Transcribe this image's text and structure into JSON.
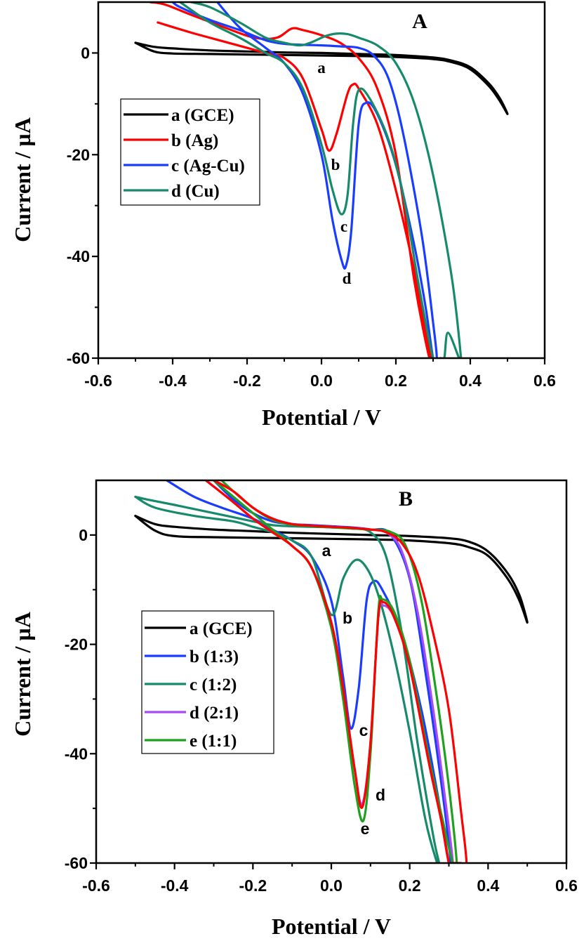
{
  "chart_data": [
    {
      "type": "line",
      "panel": "A",
      "title": "A",
      "xlabel": "Potential / V",
      "ylabel": "Current / µA",
      "xlim": [
        -0.6,
        0.6
      ],
      "ylim": [
        -60,
        10
      ],
      "xticks": [
        -0.6,
        -0.4,
        -0.2,
        0.0,
        0.2,
        0.4,
        0.6
      ],
      "xtick_labels": [
        "-0.6",
        "-0.4",
        "-0.2",
        "0.0",
        "0.2",
        "0.4",
        "0.6"
      ],
      "yticks": [
        0,
        -20,
        -40,
        -60
      ],
      "ytick_labels": [
        "0",
        "-20",
        "-40",
        "-60"
      ],
      "grid": false,
      "legend_position": "center-left",
      "series": [
        {
          "name": "a (GCE)",
          "color": "#000000",
          "peak_label": "a",
          "x": [
            -0.5,
            -0.45,
            -0.4,
            -0.3,
            -0.2,
            -0.1,
            0.0,
            0.1,
            0.2,
            0.3,
            0.35,
            0.4,
            0.45,
            0.48,
            0.5,
            0.48,
            0.45,
            0.4,
            0.35,
            0.3,
            0.2,
            0.1,
            0.0,
            -0.1,
            -0.2,
            -0.3,
            -0.4,
            -0.45,
            -0.5
          ],
          "y": [
            2,
            1.2,
            0.9,
            0.5,
            0.3,
            0.1,
            0,
            -0.2,
            -0.4,
            -0.9,
            -1.5,
            -2.8,
            -6,
            -9,
            -12,
            -9.5,
            -6.5,
            -3.2,
            -1.8,
            -1.2,
            -0.8,
            -0.6,
            -0.5,
            -0.4,
            -0.3,
            -0.2,
            -0.1,
            0.3,
            2
          ]
        },
        {
          "name": "b (Ag)",
          "color": "#ff0000",
          "peak_label": "b",
          "x": [
            -0.44,
            -0.35,
            -0.25,
            -0.15,
            -0.1,
            -0.05,
            0.0,
            0.02,
            0.04,
            0.07,
            0.085,
            0.1,
            0.15,
            0.2,
            0.25,
            0.28,
            0.295,
            0.3,
            0.29,
            0.25,
            0.2,
            0.15,
            0.1,
            0.05,
            0.0,
            -0.05,
            -0.08,
            -0.12,
            -0.18,
            -0.26,
            -0.35,
            -0.42,
            -0.46
          ],
          "y": [
            6,
            4,
            2,
            0,
            -1,
            -5,
            -15,
            -19.2,
            -16,
            -8,
            -6.2,
            -7,
            -14,
            -27,
            -43,
            -55,
            -60,
            -60,
            -60,
            -45,
            -20,
            -7,
            -1,
            2,
            3.5,
            4.5,
            4.8,
            3,
            3,
            5,
            7.5,
            9.5,
            10
          ]
        },
        {
          "name": "c (Ag-Cu)",
          "color": "#1a3cff",
          "peak_label": "d",
          "x": [
            -0.28,
            -0.22,
            -0.15,
            -0.1,
            -0.05,
            0.0,
            0.03,
            0.055,
            0.066,
            0.08,
            0.1,
            0.12,
            0.15,
            0.2,
            0.25,
            0.28,
            0.3,
            0.31,
            0.3,
            0.27,
            0.22,
            0.18,
            0.14,
            0.1,
            0.05,
            0.0,
            -0.05,
            -0.1,
            -0.15,
            -0.22,
            -0.3,
            -0.38,
            -0.4
          ],
          "y": [
            10,
            5,
            1,
            -2,
            -8,
            -20,
            -33,
            -41,
            -41.8,
            -35,
            -14,
            -9.8,
            -12,
            -22,
            -38,
            -50,
            -60,
            -60,
            -53,
            -36,
            -16,
            -5,
            -0.5,
            1,
            1.3,
            1.5,
            1.6,
            1.8,
            2.5,
            4.5,
            6.5,
            9,
            10
          ]
        },
        {
          "name": "d (Cu)",
          "color": "#178a6c",
          "peak_label": "c",
          "x": [
            -0.38,
            -0.3,
            -0.22,
            -0.15,
            -0.1,
            -0.05,
            0.0,
            0.03,
            0.053,
            0.07,
            0.085,
            0.1,
            0.13,
            0.18,
            0.22,
            0.26,
            0.3,
            0.32,
            0.33,
            0.34,
            0.37,
            0.375,
            0.35,
            0.3,
            0.25,
            0.2,
            0.15,
            0.1,
            0.07,
            0.04,
            0.01,
            -0.03,
            -0.06,
            -0.1,
            -0.15,
            -0.22,
            -0.3,
            -0.35
          ],
          "y": [
            10,
            6,
            3,
            0,
            -2,
            -7,
            -18,
            -27,
            -31.7,
            -28,
            -14,
            -7.3,
            -9,
            -17,
            -28,
            -45,
            -60,
            -60,
            -60,
            -55,
            -60,
            -60,
            -44,
            -24,
            -10,
            -2,
            1.5,
            3,
            3.7,
            3.8,
            3.3,
            2,
            1.5,
            2,
            3,
            6,
            9,
            10
          ]
        }
      ]
    },
    {
      "type": "line",
      "panel": "B",
      "title": "B",
      "xlabel": "Potential / V",
      "ylabel": "Current / µA",
      "xlim": [
        -0.6,
        0.6
      ],
      "ylim": [
        -60,
        10
      ],
      "xticks": [
        -0.6,
        -0.4,
        -0.2,
        0.0,
        0.2,
        0.4,
        0.6
      ],
      "xtick_labels": [
        "-0.6",
        "-0.4",
        "-0.2",
        "0.0",
        "0.2",
        "0.4",
        "0.6"
      ],
      "yticks": [
        0,
        -20,
        -40,
        -60
      ],
      "ytick_labels": [
        "0",
        "-20",
        "-40",
        "-60"
      ],
      "grid": false,
      "legend_position": "center-left",
      "series": [
        {
          "name": "a (GCE)",
          "color": "#000000",
          "peak_label": "a",
          "x": [
            -0.5,
            -0.45,
            -0.4,
            -0.3,
            -0.2,
            -0.1,
            0.0,
            0.1,
            0.2,
            0.3,
            0.35,
            0.4,
            0.45,
            0.48,
            0.5,
            0.48,
            0.45,
            0.4,
            0.35,
            0.3,
            0.2,
            0.1,
            0.0,
            -0.1,
            -0.2,
            -0.3,
            -0.4,
            -0.45,
            -0.5
          ],
          "y": [
            3.5,
            2,
            1.5,
            1,
            0.7,
            0.4,
            0.2,
            0,
            -0.2,
            -0.6,
            -1.2,
            -3,
            -7,
            -11,
            -16,
            -12,
            -8,
            -3.8,
            -2.2,
            -1.5,
            -1,
            -0.8,
            -0.7,
            -0.6,
            -0.5,
            -0.4,
            -0.2,
            0.8,
            3.5
          ]
        },
        {
          "name": "b (1:3)",
          "color": "#1a3cff",
          "peak_label": "c",
          "x": [
            -0.42,
            -0.35,
            -0.28,
            -0.2,
            -0.15,
            -0.1,
            -0.05,
            0.0,
            0.03,
            0.05,
            0.07,
            0.09,
            0.108,
            0.13,
            0.18,
            0.23,
            0.27,
            0.3,
            0.305,
            0.28,
            0.24,
            0.2,
            0.15,
            0.1,
            0.05,
            0.0,
            -0.05,
            -0.1,
            -0.15,
            -0.2,
            -0.25,
            -0.3
          ],
          "y": [
            10,
            7,
            5,
            3,
            1,
            -1,
            -4,
            -12,
            -26,
            -35.4,
            -28,
            -12,
            -8.5,
            -10,
            -18,
            -32,
            -47,
            -60,
            -60,
            -45,
            -25,
            -8,
            0.2,
            1,
            1.4,
            1.6,
            1.8,
            2,
            2.5,
            4,
            6.5,
            10
          ]
        },
        {
          "name": "c (1:2)",
          "color": "#178a6c",
          "peak_label": "b",
          "x": [
            -0.5,
            -0.45,
            -0.35,
            -0.25,
            -0.2,
            -0.15,
            -0.1,
            -0.05,
            0.0,
            0.03,
            0.061,
            0.09,
            0.12,
            0.16,
            0.2,
            0.24,
            0.27,
            0.275,
            0.26,
            0.22,
            0.18,
            0.14,
            0.1,
            0.05,
            0.0,
            -0.05,
            -0.1,
            -0.15,
            -0.2,
            -0.3,
            -0.4,
            -0.47,
            -0.5
          ],
          "y": [
            7,
            5,
            3.5,
            2.5,
            1.5,
            0.5,
            -1,
            -4,
            -14.6,
            -8,
            -4.6,
            -6,
            -11,
            -22,
            -36,
            -52,
            -60,
            -60,
            -55,
            -38,
            -18,
            -4,
            0.5,
            1.2,
            1.4,
            1.5,
            1.6,
            1.8,
            2.5,
            4,
            5.5,
            6.5,
            7
          ]
        },
        {
          "name": "d (2:1)",
          "color": "#a64cf0",
          "peak_label": "d",
          "x": [
            -0.32,
            -0.25,
            -0.2,
            -0.15,
            -0.1,
            -0.05,
            0.0,
            0.03,
            0.06,
            0.079,
            0.1,
            0.12,
            0.133,
            0.16,
            0.2,
            0.25,
            0.28,
            0.3,
            0.31,
            0.29,
            0.26,
            0.22,
            0.18,
            0.14,
            0.1,
            0.05,
            0.0,
            -0.05,
            -0.1,
            -0.15,
            -0.2,
            -0.25,
            -0.3
          ],
          "y": [
            10,
            6,
            3,
            0.5,
            -2,
            -6,
            -16,
            -28,
            -43,
            -49.2,
            -38,
            -15,
            -12.9,
            -15,
            -24,
            -42,
            -52,
            -60,
            -60,
            -48,
            -32,
            -14,
            -3,
            0.5,
            1,
            1.3,
            1.5,
            1.7,
            2,
            3,
            5,
            8,
            10
          ]
        },
        {
          "name": "e (1:1)",
          "color": "#1fa01f",
          "peak_label": "e",
          "x": [
            -0.3,
            -0.25,
            -0.2,
            -0.15,
            -0.1,
            -0.05,
            0.0,
            0.03,
            0.06,
            0.082,
            0.1,
            0.12,
            0.131,
            0.16,
            0.2,
            0.25,
            0.29,
            0.31,
            0.32,
            0.3,
            0.27,
            0.23,
            0.19,
            0.15,
            0.1,
            0.05,
            0.0,
            -0.05,
            -0.1,
            -0.15,
            -0.2,
            -0.25,
            -0.28
          ],
          "y": [
            10,
            7,
            4,
            1,
            -2,
            -6,
            -17,
            -30,
            -46,
            -52.2,
            -40,
            -14,
            -11.8,
            -14,
            -23,
            -41,
            -54,
            -60,
            -60,
            -46,
            -30,
            -12,
            -2,
            0.6,
            1,
            1.2,
            1.4,
            1.6,
            1.9,
            2.8,
            5,
            8,
            10
          ]
        },
        {
          "name": "",
          "color": "#ff0000",
          "peak_label": "",
          "x": [
            -0.32,
            -0.25,
            -0.2,
            -0.15,
            -0.1,
            -0.05,
            0.0,
            0.03,
            0.06,
            0.079,
            0.1,
            0.12,
            0.133,
            0.16,
            0.2,
            0.25,
            0.28,
            0.3,
            0.31,
            0.33,
            0.345,
            0.33,
            0.3,
            0.26,
            0.22,
            0.18,
            0.14,
            0.1,
            0.05,
            0.0,
            -0.05,
            -0.1,
            -0.15,
            -0.2,
            -0.25,
            -0.3
          ],
          "y": [
            10,
            6,
            3,
            0.5,
            -2,
            -6,
            -16,
            -28,
            -43,
            -49.8,
            -38,
            -15,
            -12.3,
            -15,
            -24,
            -42,
            -52,
            -60,
            -60,
            -60,
            -60,
            -50,
            -32,
            -18,
            -7,
            -1.5,
            0.5,
            1,
            1.3,
            1.5,
            1.7,
            2,
            3,
            5,
            8,
            10
          ]
        }
      ]
    }
  ]
}
